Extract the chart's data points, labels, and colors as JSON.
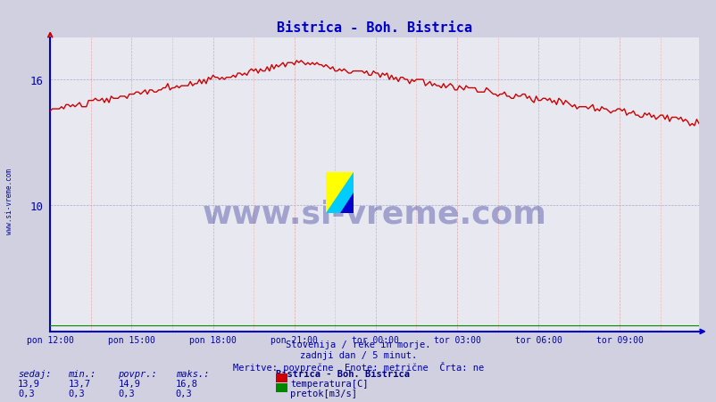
{
  "title": "Bistrica - Boh. Bistrica",
  "title_color": "#0000cc",
  "bg_color": "#d0d0e0",
  "plot_bg_color": "#e8e8f0",
  "x_tick_labels": [
    "pon 12:00",
    "pon 15:00",
    "pon 18:00",
    "pon 21:00",
    "tor 00:00",
    "tor 03:00",
    "tor 06:00",
    "tor 09:00"
  ],
  "x_tick_positions": [
    0,
    36,
    72,
    108,
    144,
    180,
    216,
    252
  ],
  "total_points": 288,
  "ylim": [
    4,
    18
  ],
  "yticks": [
    10,
    16
  ],
  "ylabel_color": "#0000aa",
  "axis_color": "#0000cc",
  "line_color_temp": "#cc0000",
  "line_color_flow": "#008800",
  "watermark_text": "www.si-vreme.com",
  "watermark_color": "#000080",
  "watermark_alpha": 0.3,
  "footer_line1": "Slovenija / reke in morje.",
  "footer_line2": "zadnji dan / 5 minut.",
  "footer_line3": "Meritve: povprečne  Enote: metrične  Črta: ne",
  "footer_color": "#0000aa",
  "stats_label_color": "#0000aa",
  "legend_title": "Bistrica - Boh. Bistrica",
  "legend_title_color": "#000080",
  "legend_temp_label": "temperatura[C]",
  "legend_flow_label": "pretok[m3/s]",
  "sedaj_temp": "13,9",
  "min_temp": "13,7",
  "povpr_temp": "14,9",
  "maks_temp": "16,8",
  "sedaj_flow": "0,3",
  "min_flow": "0,3",
  "povpr_flow": "0,3",
  "maks_flow": "0,3",
  "left_label": "www.si-vreme.com",
  "left_label_color": "#0000aa"
}
